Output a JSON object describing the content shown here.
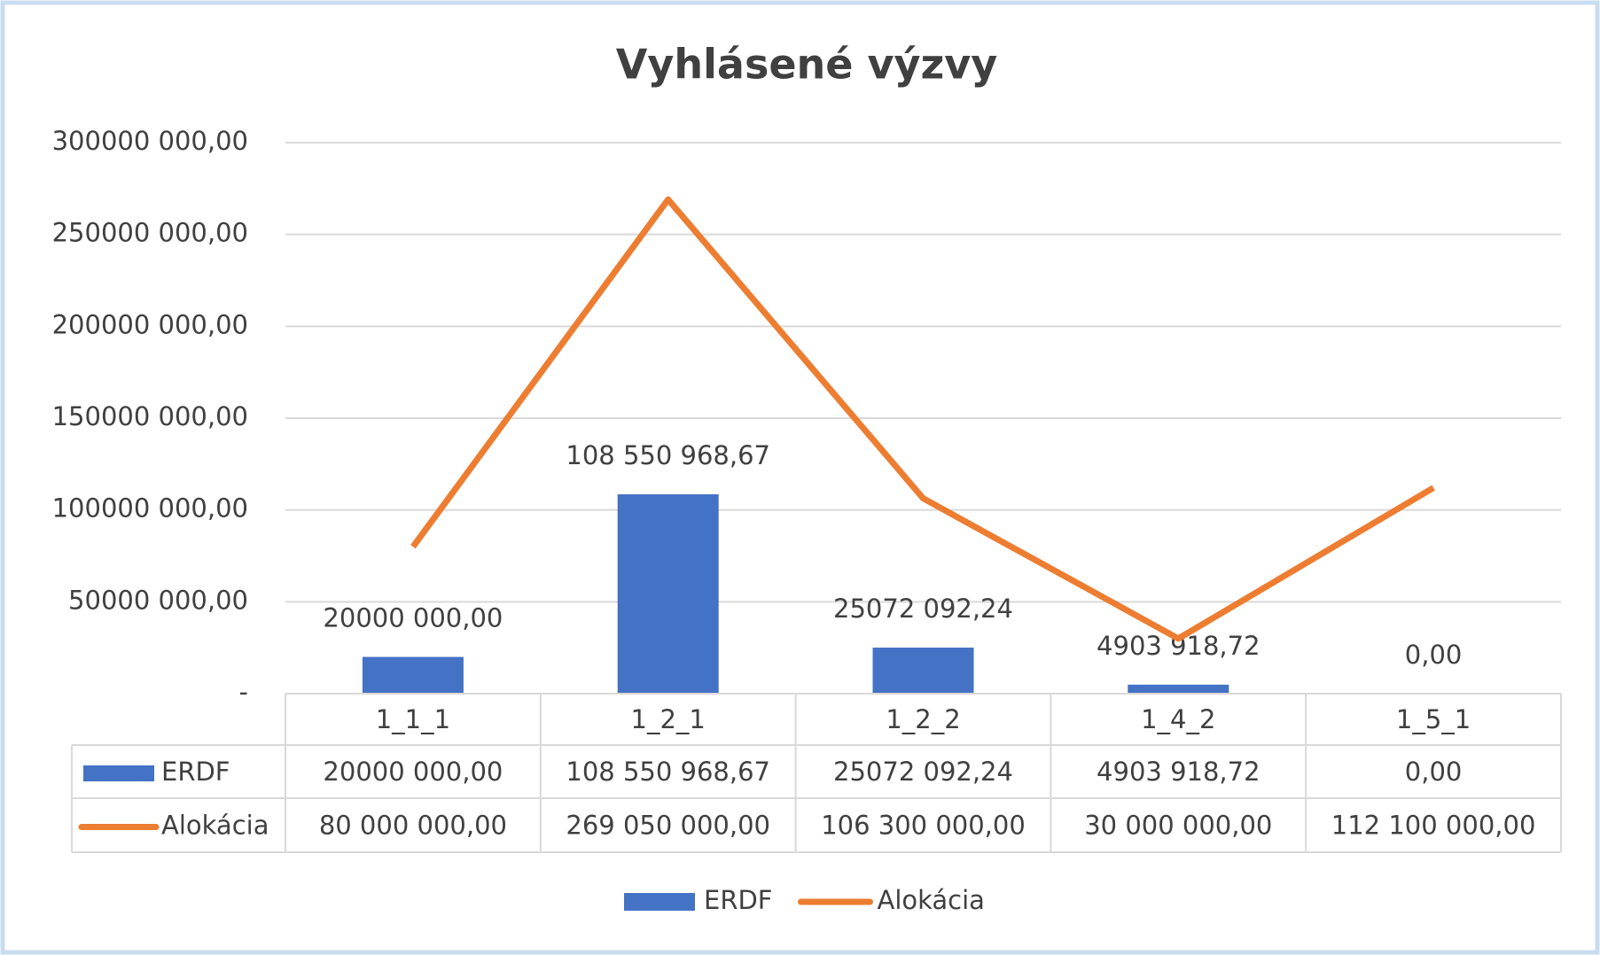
{
  "chart_data": {
    "type": "bar",
    "title": "Vyhlásené výzvy",
    "categories": [
      "1_1_1",
      "1_2_1",
      "1_2_2",
      "1_4_2",
      "1_5_1"
    ],
    "series": [
      {
        "name": "ERDF",
        "type": "bar",
        "color": "#4472c4",
        "values": [
          20000000,
          108550968.67,
          25072092.24,
          4903918.72,
          0
        ],
        "value_labels": [
          "20000 000,00",
          "108 550 968,67",
          "25072 092,24",
          "4903 918,72",
          "0,00"
        ]
      },
      {
        "name": "Alokácia",
        "type": "line",
        "color": "#ed7d31",
        "values": [
          80000000,
          269050000,
          106300000,
          30000000,
          112100000
        ],
        "value_labels": [
          "80 000 000,00",
          "269 050 000,00",
          "106 300 000,00",
          "30 000 000,00",
          "112 100 000,00"
        ]
      }
    ],
    "ylim": [
      0,
      300000000
    ],
    "yticks": [
      {
        "value": 0,
        "label": "-"
      },
      {
        "value": 50000000,
        "label": "50000 000,00"
      },
      {
        "value": 100000000,
        "label": "100000 000,00"
      },
      {
        "value": 150000000,
        "label": "150000 000,00"
      },
      {
        "value": 200000000,
        "label": "200000 000,00"
      },
      {
        "value": 250000000,
        "label": "250000 000,00"
      },
      {
        "value": 300000000,
        "label": "300000 000,00"
      }
    ],
    "grid": true,
    "legend": "bottom",
    "data_table": true
  }
}
